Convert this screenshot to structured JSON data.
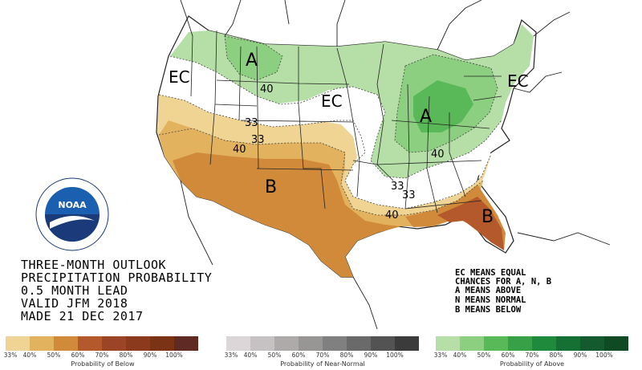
{
  "title_lines": [
    "THREE-MONTH OUTLOOK",
    "PRECIPITATION PROBABILITY",
    "0.5 MONTH LEAD",
    "VALID JFM 2018",
    "MADE 21 DEC 2017"
  ],
  "legend_lines": [
    "EC MEANS EQUAL",
    "CHANCES FOR A, N, B",
    "A MEANS ABOVE",
    "N MEANS NORMAL",
    "B MEANS BELOW"
  ],
  "region_labels": {
    "above_west": "A",
    "above_east": "A",
    "below_sw": "B",
    "below_fl": "B",
    "ec_west": "EC",
    "ec_central": "EC",
    "ec_east": "EC"
  },
  "contour_labels": {
    "c40_north": "40",
    "c33_a": "33",
    "c33_b": "33",
    "c40_sw": "40",
    "c40_east": "40",
    "c33_c": "33",
    "c33_d": "33",
    "c40_gulf": "40"
  },
  "colors": {
    "below_33": "#f0d493",
    "below_40": "#e3b25f",
    "below_50": "#d08a39",
    "below_60": "#b3592b",
    "above_33": "#b5dfa6",
    "above_40": "#8ccf80",
    "above_50": "#59b857",
    "ocean": "#ffffff",
    "land": "#ffffff"
  },
  "scales": {
    "below": {
      "title": "Probability of Below",
      "ticks": [
        "33%",
        "40%",
        "50%",
        "60%",
        "70%",
        "80%",
        "90%",
        "100%"
      ],
      "colors": [
        "#f0d493",
        "#e3b25f",
        "#d08a39",
        "#b3592b",
        "#9b4526",
        "#8b3a1e",
        "#7a3315",
        "#5e2a22"
      ]
    },
    "normal": {
      "title": "Probability of Near-Normal",
      "ticks": [
        "33%",
        "40%",
        "50%",
        "60%",
        "70%",
        "80%",
        "90%",
        "100%"
      ],
      "colors": [
        "#dcd6d8",
        "#c6c2c3",
        "#aeaaaa",
        "#989595",
        "#818081",
        "#6a6a6a",
        "#535353",
        "#3b3b3b"
      ]
    },
    "above": {
      "title": "Probability of Above",
      "ticks": [
        "33%",
        "40%",
        "50%",
        "60%",
        "70%",
        "80%",
        "90%",
        "100%"
      ],
      "colors": [
        "#b5dfa6",
        "#8ccf80",
        "#59b857",
        "#38a148",
        "#1f8a3b",
        "#167034",
        "#135b2e",
        "#0f4a25"
      ]
    }
  },
  "logo_text": "NOAA"
}
